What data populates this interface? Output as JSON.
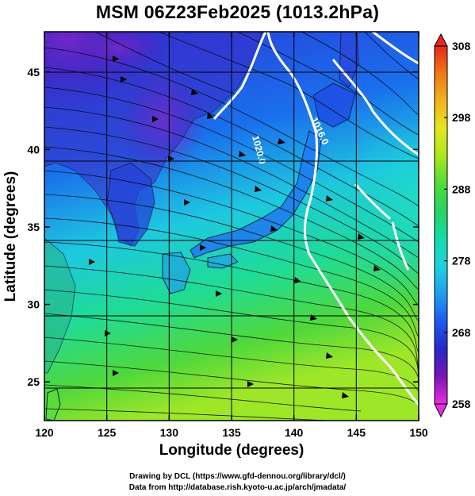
{
  "title": "MSM 06Z23Feb2025 (1013.2hPa)",
  "x_axis": {
    "label": "Longitude (degrees)",
    "range": [
      120,
      150
    ],
    "ticks": [
      "120",
      "125",
      "130",
      "135",
      "140",
      "145",
      "150"
    ]
  },
  "y_axis": {
    "label": "Latitude  (degrees)",
    "range": [
      22.5,
      47.6
    ],
    "ticks": [
      "25",
      "30",
      "35",
      "40",
      "45"
    ]
  },
  "colorbar": {
    "ticks": [
      "258",
      "268",
      "278",
      "288",
      "298",
      "308"
    ],
    "min": 258,
    "max": 308,
    "colors": [
      "#e62ee0",
      "#7a14b4",
      "#2828c8",
      "#1e5af0",
      "#1ea0f0",
      "#1ed2dc",
      "#14dcaa",
      "#28d264",
      "#50dc3c",
      "#aae61e",
      "#e6e61e",
      "#f0b41e",
      "#f07814",
      "#e6281e"
    ]
  },
  "contour_labels": [
    "1020.0",
    "1016.0"
  ],
  "credits": {
    "line1": "Drawing by DCL (https://www.gfd-dennou.org/library/dcl/)",
    "line2": "Data from http://database.rish.kyoto-u.ac.jp/arch/jmadata/"
  }
}
